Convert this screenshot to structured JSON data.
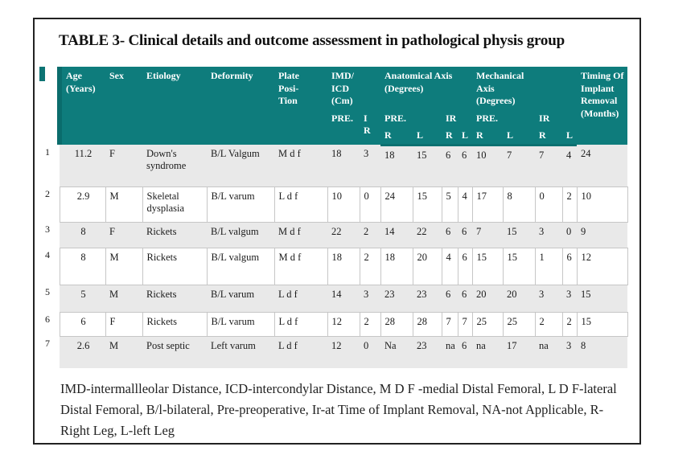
{
  "page": {
    "title": "TABLE 3- Clinical details and outcome assessment in pathological physis group",
    "footnote": "IMD-intermallleolar Distance, ICD-intercondylar Distance, M D F -medial Distal Femoral, L D F-lateral\nDistal Femoral, B/l-bilateral, Pre-preoperative, Ir-at Time of Implant Removal, NA-not Applicable, R-\nRight Leg, L-left Leg"
  },
  "colors": {
    "header_teal": "#0e7c7c",
    "header_teal_dark": "#0a6c6c",
    "row_gray": "#e9e9e9",
    "row_white": "#ffffff",
    "cell_border": "#c6c6c6",
    "page_border": "#222222",
    "header_text": "#ffffff",
    "body_text": "#1b1b1b"
  },
  "table": {
    "header": {
      "age": "Age\n(Years)",
      "sex": "Sex",
      "etiology": "Etiology",
      "deformity": "Deformity",
      "plate": "Plate\nPosi-\nTion",
      "imd": "IMD/\nICD\n(Cm)",
      "anatomical": "Anatomical Axis\n(Degrees)",
      "mechanical": "Mechanical\nAxis\n(Degrees)",
      "timing": "Timing Of\nImplant\nRemoval\n(Months)",
      "sub": {
        "pre": "PRE.",
        "ir_stacked": "I\nR",
        "ir": "IR",
        "right": "R",
        "left": "L"
      }
    },
    "rows": [
      {
        "num": "1",
        "age": "11.2",
        "sex": "F",
        "etiology": "Down's syndrome",
        "deformity": "B/L Valgum",
        "plate": "M d f",
        "values": [
          "18",
          "3",
          "18",
          "15",
          "6",
          "6",
          "10",
          "7",
          "7",
          "4",
          "24"
        ]
      },
      {
        "num": "2",
        "age": "2.9",
        "sex": "M",
        "etiology": "Skeletal dysplasia",
        "deformity": "B/L varum",
        "plate": "L d f",
        "values": [
          "10",
          "0",
          "24",
          "15",
          "5",
          "4",
          "17",
          "8",
          "0",
          "2",
          "10"
        ]
      },
      {
        "num": "3",
        "age": "8",
        "sex": "F",
        "etiology": "Rickets",
        "deformity": "B/L valgum",
        "plate": "M d f",
        "values": [
          "22",
          "2",
          "14",
          "22",
          "6",
          "6",
          "7",
          "15",
          "3",
          "0",
          "9"
        ]
      },
      {
        "num": "4",
        "age": "8",
        "sex": "M",
        "etiology": "Rickets",
        "deformity": "B/L valgum",
        "plate": "M d f",
        "values": [
          "18",
          "2",
          "18",
          "20",
          "4",
          "6",
          "15",
          "15",
          "1",
          "6",
          "12"
        ]
      },
      {
        "num": "5",
        "age": "5",
        "sex": "M",
        "etiology": "Rickets",
        "deformity": "B/L varum",
        "plate": "L d f",
        "values": [
          "14",
          "3",
          "23",
          "23",
          "6",
          "6",
          "20",
          "20",
          "3",
          "3",
          "15"
        ]
      },
      {
        "num": "6",
        "age": "6",
        "sex": "F",
        "etiology": "Rickets",
        "deformity": "B/L varum",
        "plate": "L d f",
        "values": [
          "12",
          "2",
          "28",
          "28",
          "7",
          "7",
          "25",
          "25",
          "2",
          "2",
          "15"
        ]
      },
      {
        "num": "7",
        "age": "2.6",
        "sex": "M",
        "etiology": "Post septic",
        "deformity": "Left varum",
        "plate": "L d f",
        "values": [
          "12",
          "0",
          "Na",
          "23",
          "na",
          "6",
          "na",
          "17",
          "na",
          "3",
          "8"
        ]
      }
    ]
  }
}
